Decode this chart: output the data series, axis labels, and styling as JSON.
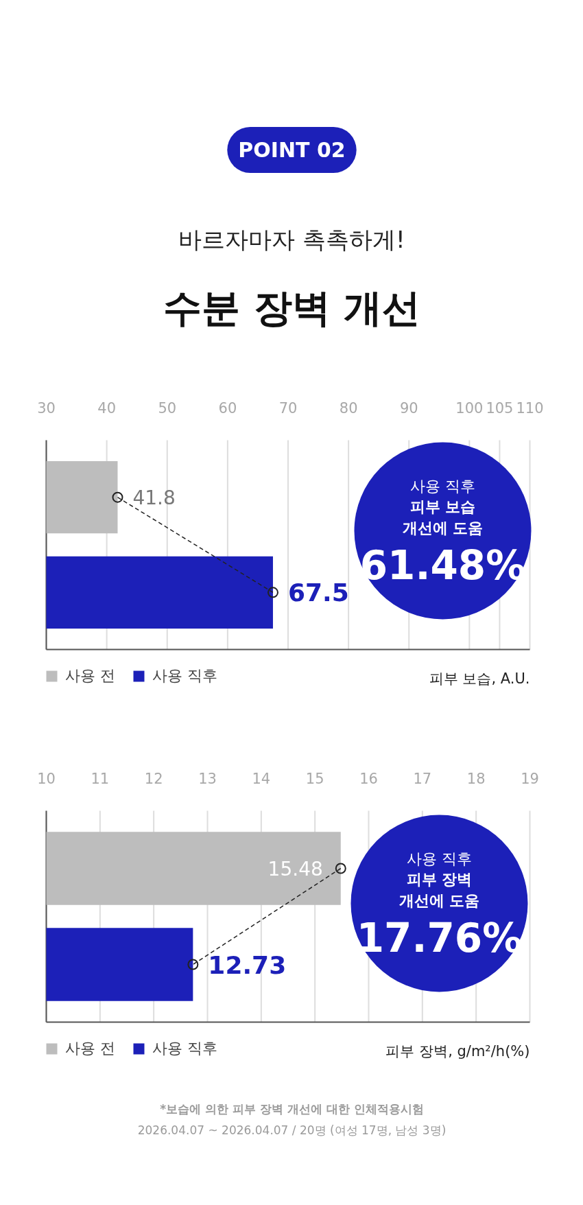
{
  "chart_data": [
    {
      "type": "bar",
      "orientation": "horizontal",
      "title": "수분 장벽 개선",
      "subtitle": "바르자마자 촉촉하게!",
      "xlabel": "피부 보습, A.U.",
      "annotations": [
        "POINT 02",
        "사용 직후",
        "피부 보습",
        "개선에 도움",
        "61.48%"
      ],
      "categories": [
        null,
        null
      ],
      "series": [
        {
          "name": "사용 전",
          "color": "#bdbdbd",
          "values": [
            41.8,
            null
          ]
        },
        {
          "name": "사용 직후",
          "color": "#1c20b8",
          "values": [
            null,
            67.5
          ]
        }
      ],
      "xlim": [
        30,
        110
      ],
      "xticks": [
        30,
        40,
        50,
        60,
        70,
        80,
        90,
        100,
        105,
        110
      ],
      "grid": "x",
      "legend": "bottom left",
      "data_labels": true,
      "marker": "circle",
      "line_style": "dashed",
      "tick_labels": "x"
    },
    {
      "type": "bar",
      "orientation": "horizontal",
      "xlabel": "피부 장벽, g/m²/h(%)",
      "annotations": [
        "사용 직후",
        "피부 장벽",
        "개선에 도움",
        "17.76%",
        "*보습에 의한 피부 장벽 개선에 대한 인체적용시험",
        "2026.04.07 ~ 2026.04.07 / 20명 (여성 17명, 남성 3명)"
      ],
      "categories": [
        null,
        null
      ],
      "series": [
        {
          "name": "사용 전",
          "color": "#bdbdbd",
          "values": [
            15.48,
            null
          ]
        },
        {
          "name": "사용 직후",
          "color": "#1c20b8",
          "values": [
            null,
            12.73
          ]
        }
      ],
      "xlim": [
        10,
        19
      ],
      "xticks": [
        10,
        11,
        12,
        13,
        14,
        15,
        16,
        17,
        18,
        19
      ],
      "grid": "x",
      "legend": "bottom left",
      "data_labels": true,
      "marker": "circle",
      "line_style": "dashed",
      "tick_labels": "x"
    }
  ]
}
